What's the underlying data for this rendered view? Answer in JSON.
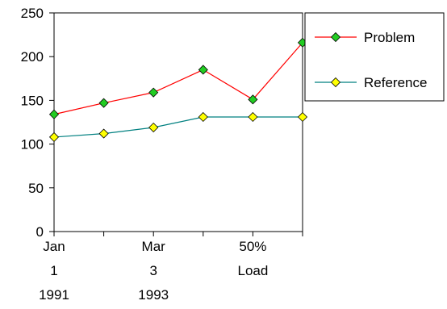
{
  "chart_data": {
    "type": "line",
    "categories": [
      [
        "Jan",
        "1",
        "1991"
      ],
      [
        "",
        "",
        ""
      ],
      [
        "Mar",
        "3",
        "1993"
      ],
      [
        "",
        "",
        ""
      ],
      [
        "50%",
        "Load",
        ""
      ],
      [
        "",
        "",
        ""
      ]
    ],
    "series": [
      {
        "name": "Problem",
        "values": [
          134,
          147,
          159,
          185,
          151,
          216
        ],
        "line_color": "#ff0000",
        "marker_color": "#22cc22"
      },
      {
        "name": "Reference",
        "values": [
          108,
          112,
          119,
          131,
          131,
          131
        ],
        "line_color": "#008080",
        "marker_color": "#ffff00"
      }
    ],
    "y_ticks": [
      "0",
      "50",
      "100",
      "150",
      "200",
      "250"
    ],
    "ylim": [
      0,
      250
    ],
    "grid": false,
    "legend_position": "right"
  }
}
